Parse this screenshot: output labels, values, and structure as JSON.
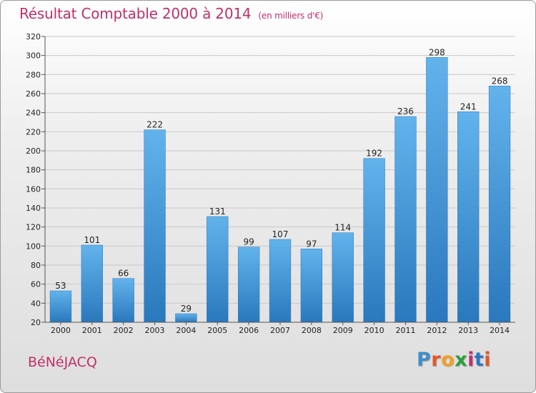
{
  "title": "Résultat Comptable 2000 à 2014",
  "subtitle": "(en milliers d'€)",
  "commune": "BéNéJACQ",
  "logo": {
    "letters": [
      "P",
      "r",
      "o",
      "x",
      "i",
      "t",
      "i"
    ],
    "colors": [
      "#3f8ec9",
      "#e0582b",
      "#f2a020",
      "#2d9e3a",
      "#c0306a",
      "#2b78c2",
      "#e0582b"
    ]
  },
  "colors": {
    "bar": "#3e94d8",
    "bar_light": "#62b3ec",
    "bar_dark": "#2a78bd",
    "accent": "#c0306a"
  },
  "chart_data": {
    "type": "bar",
    "title": "Résultat Comptable 2000 à 2014",
    "xlabel": "",
    "ylabel": "",
    "ylim": [
      20,
      320
    ],
    "yticks": [
      20,
      40,
      60,
      80,
      100,
      120,
      140,
      160,
      180,
      200,
      220,
      240,
      260,
      280,
      300,
      320
    ],
    "grid": true,
    "categories": [
      "2000",
      "2001",
      "2002",
      "2003",
      "2004",
      "2005",
      "2006",
      "2007",
      "2008",
      "2009",
      "2010",
      "2011",
      "2012",
      "2013",
      "2014"
    ],
    "values": [
      53,
      101,
      66,
      222,
      29,
      131,
      99,
      107,
      97,
      114,
      192,
      236,
      298,
      241,
      268
    ]
  }
}
